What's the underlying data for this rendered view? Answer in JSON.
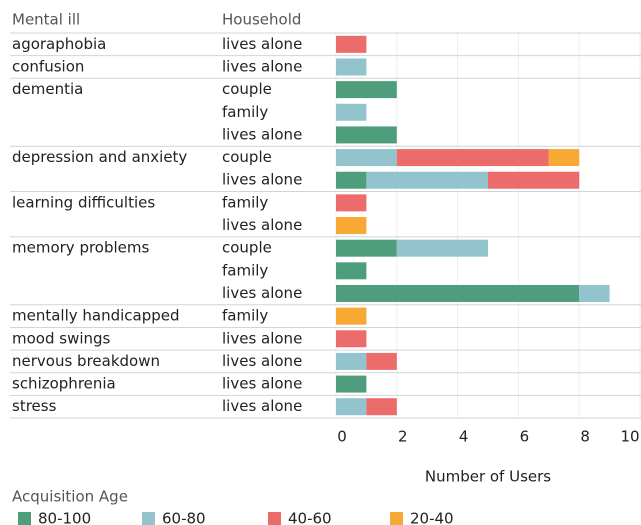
{
  "chart_data": {
    "type": "stacked-horizontal-bar",
    "column_headers": [
      "Mental ill",
      "Household"
    ],
    "group_labels": [
      "agoraphobia",
      "confusion",
      "dementia",
      null,
      null,
      "depression and anxiety",
      null,
      "learning difficulties",
      null,
      "memory problems",
      null,
      null,
      "mentally handicapped",
      "mood swings",
      "nervous breakdown",
      "schizophrenia",
      "stress"
    ],
    "categories": [
      "lives alone",
      "lives alone",
      "couple",
      "family",
      "lives alone",
      "couple",
      "lives alone",
      "family",
      "lives alone",
      "couple",
      "family",
      "lives alone",
      "family",
      "lives alone",
      "lives alone",
      "lives alone",
      "lives alone"
    ],
    "series": [
      {
        "name": "80-100",
        "color": "#4e9e7d",
        "values": [
          null,
          null,
          2,
          null,
          2,
          null,
          1,
          null,
          null,
          2,
          1,
          8,
          null,
          null,
          null,
          1,
          null
        ]
      },
      {
        "name": "60-80",
        "color": "#93c4cd",
        "values": [
          null,
          1,
          null,
          1,
          null,
          2,
          4,
          null,
          null,
          3,
          null,
          1,
          null,
          null,
          1,
          null,
          1
        ]
      },
      {
        "name": "40-60",
        "color": "#ec6b6b",
        "values": [
          1,
          null,
          null,
          null,
          null,
          5,
          3,
          1,
          null,
          null,
          null,
          null,
          null,
          1,
          1,
          null,
          1
        ]
      },
      {
        "name": "20-40",
        "color": "#f7a934",
        "values": [
          null,
          null,
          null,
          null,
          null,
          1,
          null,
          null,
          1,
          null,
          null,
          null,
          1,
          null,
          null,
          null,
          null
        ]
      }
    ],
    "xlim": [
      0,
      10
    ],
    "xticks": [
      0,
      2,
      4,
      6,
      8,
      10
    ],
    "x_label": "Number of Users",
    "legend_title": "Acquisition Age"
  }
}
